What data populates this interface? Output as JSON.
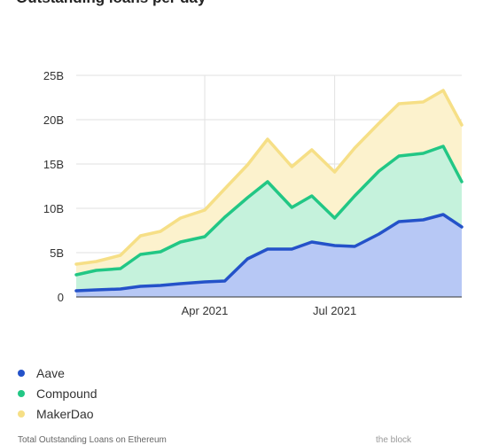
{
  "title": "Outstanding loans per day",
  "footer": {
    "caption": "Total Outstanding Loans on Ethereum",
    "source": "the block"
  },
  "colors": {
    "aave_line": "#2452c9",
    "aave_fill": "#b7c8f5",
    "compound_line": "#22c785",
    "compound_fill": "#c5f2dc",
    "makerdao_line": "#f6df86",
    "makerdao_fill": "#fcf2cd",
    "grid": "#e2e2e2",
    "axis": "#333333"
  },
  "legend": [
    {
      "label": "Aave",
      "color": "#2452c9"
    },
    {
      "label": "Compound",
      "color": "#22c785"
    },
    {
      "label": "MakerDao",
      "color": "#f6df86"
    }
  ],
  "chart_data": {
    "type": "area",
    "stacked": true,
    "title": "",
    "xlabel": "",
    "ylabel": "",
    "ylim": [
      0,
      25
    ],
    "y_unit": "B",
    "y_ticks": [
      "0",
      "5B",
      "10B",
      "15B",
      "20B",
      "25B"
    ],
    "x_ticks": [
      {
        "date": "2021-04-01",
        "label": "Apr 2021"
      },
      {
        "date": "2021-07-01",
        "label": "Jul 2021"
      }
    ],
    "xlim": [
      "2021-01-01",
      "2021-09-28"
    ],
    "x": [
      "2021-01-01",
      "2021-01-15",
      "2021-02-01",
      "2021-02-15",
      "2021-03-01",
      "2021-03-15",
      "2021-04-01",
      "2021-04-15",
      "2021-05-01",
      "2021-05-15",
      "2021-06-01",
      "2021-06-15",
      "2021-07-01",
      "2021-07-15",
      "2021-08-01",
      "2021-08-15",
      "2021-09-01",
      "2021-09-15",
      "2021-09-28"
    ],
    "grid": true,
    "legend_position": "bottom-left",
    "series": [
      {
        "name": "Aave",
        "values": [
          0.7,
          0.8,
          0.9,
          1.2,
          1.3,
          1.5,
          1.7,
          1.8,
          4.3,
          5.4,
          5.4,
          6.2,
          5.8,
          5.7,
          7.1,
          8.5,
          8.7,
          9.3,
          7.9
        ]
      },
      {
        "name": "Compound",
        "values": [
          1.8,
          2.2,
          2.3,
          3.6,
          3.8,
          4.7,
          5.1,
          7.2,
          6.9,
          7.6,
          4.7,
          5.2,
          3.1,
          5.7,
          7.1,
          7.4,
          7.5,
          7.7,
          5.1
        ]
      },
      {
        "name": "MakerDao",
        "values": [
          1.2,
          1.0,
          1.5,
          2.1,
          2.3,
          2.7,
          3.0,
          3.2,
          3.7,
          4.8,
          4.6,
          5.2,
          5.2,
          5.4,
          5.4,
          5.9,
          5.8,
          6.3,
          6.4
        ]
      }
    ]
  }
}
